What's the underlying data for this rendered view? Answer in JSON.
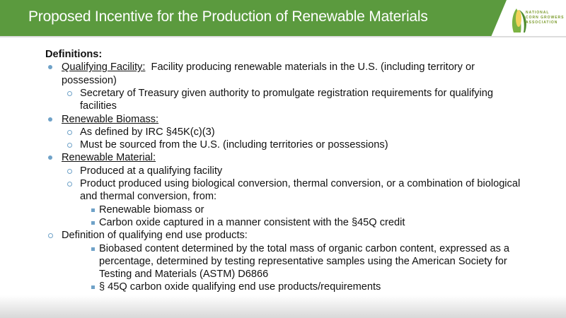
{
  "header": {
    "title": "Proposed Incentive for the Production of Renewable Materials",
    "color": "#5b9a3e"
  },
  "logo": {
    "text": [
      "NATIONAL",
      "CORN GROWERS",
      "ASSOCIATION"
    ]
  },
  "bullet_color": "#6fa2c8",
  "rows": [
    {
      "marker": "none",
      "u": "",
      "t": "Definitions:",
      "bold": true
    },
    {
      "marker": "dot",
      "u": "Qualifying Facility:",
      "t": "  Facility producing renewable materials in the U.S. (including territory or"
    },
    {
      "marker": "none",
      "u": "",
      "t": "possession)"
    },
    {
      "marker": "circle",
      "u": "",
      "t": "Secretary of Treasury given authority to promulgate registration requirements for qualifying"
    },
    {
      "marker": "none",
      "u": "",
      "t": "facilities"
    },
    {
      "marker": "dot",
      "u": "Renewable Biomass:",
      "t": ""
    },
    {
      "marker": "circle",
      "u": "",
      "t": "As defined by IRC §45K(c)(3)"
    },
    {
      "marker": "circle",
      "u": "",
      "t": "Must be sourced from the U.S. (including territories or possessions)"
    },
    {
      "marker": "dot",
      "u": "Renewable Material:",
      "t": ""
    },
    {
      "marker": "circle",
      "u": "",
      "t": "Produced at a qualifying facility"
    },
    {
      "marker": "circle",
      "u": "",
      "t": "Product produced using biological conversion, thermal conversion, or a combination of biological"
    },
    {
      "marker": "none",
      "u": "",
      "t": "and thermal conversion, from:"
    },
    {
      "marker": "square",
      "u": "",
      "t": "Renewable biomass or"
    },
    {
      "marker": "square",
      "u": "",
      "t": "Carbon oxide captured in a manner consistent with the §45Q credit"
    },
    {
      "marker": "circle",
      "u": "",
      "t": "Definition of qualifying end use products:"
    },
    {
      "marker": "square",
      "u": "",
      "t": "Biobased content determined by the total mass of organic carbon content, expressed as a"
    },
    {
      "marker": "none",
      "u": "",
      "t": "percentage, determined by testing representative samples using the American Society for"
    },
    {
      "marker": "none",
      "u": "",
      "t": "Testing and Materials (ASTM) D6866"
    },
    {
      "marker": "square",
      "u": "",
      "t": "§ 45Q carbon oxide qualifying end use products/requirements"
    }
  ]
}
